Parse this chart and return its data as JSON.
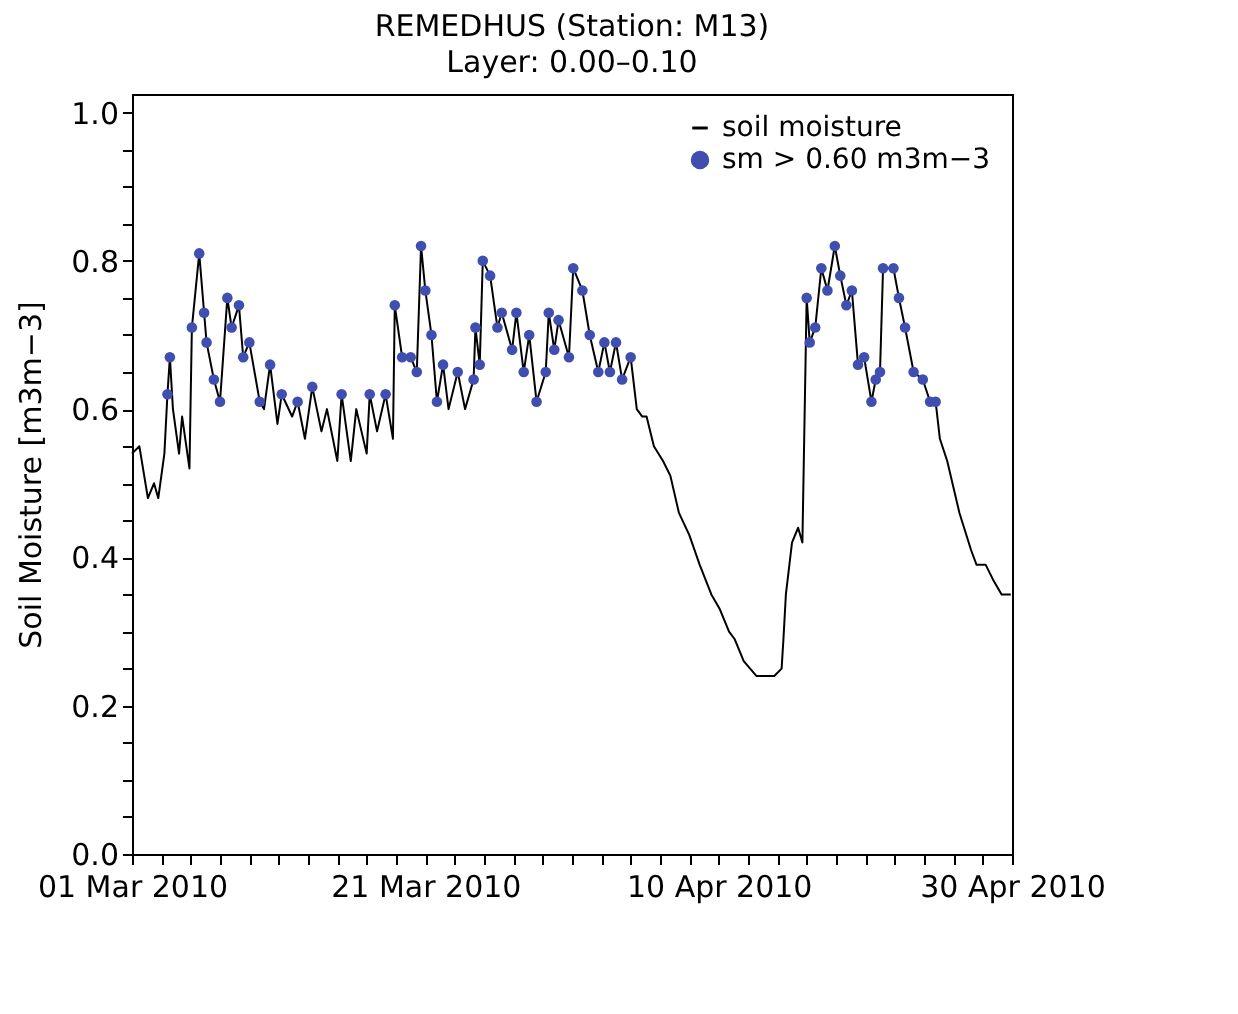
{
  "chart_data": {
    "type": "line",
    "title": "REMEDHUS  (Station: M13)",
    "subtitle": "Layer: 0.00–0.10",
    "ylabel": "Soil Moisture [m3m−3]",
    "x": [
      "2010-03-01T00:00",
      "2010-03-01T12:00",
      "2010-03-02T02:00",
      "2010-03-02T12:00",
      "2010-03-02T19:00",
      "2010-03-03T05:00",
      "2010-03-03T10:00",
      "2010-03-03T14:00",
      "2010-03-03T19:00",
      "2010-03-04T05:00",
      "2010-03-04T10:00",
      "2010-03-04T22:00",
      "2010-03-05T02:00",
      "2010-03-05T14:00",
      "2010-03-05T22:00",
      "2010-03-06T02:00",
      "2010-03-06T14:00",
      "2010-03-07T00:00",
      "2010-03-07T12:00",
      "2010-03-07T19:00",
      "2010-03-08T07:00",
      "2010-03-08T14:00",
      "2010-03-09T00:00",
      "2010-03-09T17:00",
      "2010-03-10T00:00",
      "2010-03-10T10:00",
      "2010-03-10T22:00",
      "2010-03-11T05:00",
      "2010-03-11T22:00",
      "2010-03-12T07:00",
      "2010-03-12T19:00",
      "2010-03-13T07:00",
      "2010-03-13T22:00",
      "2010-03-14T07:00",
      "2010-03-15T00:00",
      "2010-03-15T07:00",
      "2010-03-15T22:00",
      "2010-03-16T07:00",
      "2010-03-17T00:00",
      "2010-03-17T05:00",
      "2010-03-17T17:00",
      "2010-03-18T07:00",
      "2010-03-18T19:00",
      "2010-03-18T22:00",
      "2010-03-19T10:00",
      "2010-03-20T00:00",
      "2010-03-20T10:00",
      "2010-03-20T17:00",
      "2010-03-21T00:00",
      "2010-03-21T10:00",
      "2010-03-21T19:00",
      "2010-03-22T05:00",
      "2010-03-22T14:00",
      "2010-03-23T05:00",
      "2010-03-23T17:00",
      "2010-03-24T07:00",
      "2010-03-24T10:00",
      "2010-03-24T17:00",
      "2010-03-24T22:00",
      "2010-03-25T10:00",
      "2010-03-25T22:00",
      "2010-03-26T05:00",
      "2010-03-26T22:00",
      "2010-03-27T05:00",
      "2010-03-27T17:00",
      "2010-03-28T02:00",
      "2010-03-28T14:00",
      "2010-03-29T05:00",
      "2010-03-29T10:00",
      "2010-03-29T19:00",
      "2010-03-30T02:00",
      "2010-03-30T19:00",
      "2010-03-31T02:00",
      "2010-03-31T17:00",
      "2010-04-01T05:00",
      "2010-04-01T19:00",
      "2010-04-02T05:00",
      "2010-04-02T14:00",
      "2010-04-03T00:00",
      "2010-04-03T10:00",
      "2010-04-04T00:00",
      "2010-04-04T10:00",
      "2010-04-04T19:00",
      "2010-04-05T02:00",
      "2010-04-05T14:00",
      "2010-04-06T05:00",
      "2010-04-06T17:00",
      "2010-04-07T07:00",
      "2010-04-08T00:00",
      "2010-04-08T17:00",
      "2010-04-09T12:00",
      "2010-04-10T02:00",
      "2010-04-10T17:00",
      "2010-04-11T02:00",
      "2010-04-11T17:00",
      "2010-04-12T14:00",
      "2010-04-13T19:00",
      "2010-04-14T07:00",
      "2010-04-14T10:00",
      "2010-04-14T14:00",
      "2010-04-15T00:00",
      "2010-04-15T10:00",
      "2010-04-15T17:00",
      "2010-04-16T00:00",
      "2010-04-16T05:00",
      "2010-04-16T14:00",
      "2010-04-17T00:00",
      "2010-04-17T10:00",
      "2010-04-17T22:00",
      "2010-04-18T07:00",
      "2010-04-18T17:00",
      "2010-04-19T02:00",
      "2010-04-19T12:00",
      "2010-04-19T22:00",
      "2010-04-20T10:00",
      "2010-04-20T17:00",
      "2010-04-21T00:00",
      "2010-04-21T05:00",
      "2010-04-21T22:00",
      "2010-04-22T07:00",
      "2010-04-22T17:00",
      "2010-04-23T07:00",
      "2010-04-23T22:00",
      "2010-04-24T10:00",
      "2010-04-24T19:00",
      "2010-04-25T02:00",
      "2010-04-25T14:00",
      "2010-04-26T10:00",
      "2010-04-27T05:00",
      "2010-04-27T14:00",
      "2010-04-28T05:00",
      "2010-04-28T17:00",
      "2010-04-29T07:00",
      "2010-04-29T22:00"
    ],
    "series": [
      {
        "name": "soil moisture",
        "type": "line",
        "color": "#000000",
        "values": [
          0.54,
          0.55,
          0.48,
          0.5,
          0.48,
          0.54,
          0.62,
          0.67,
          0.6,
          0.54,
          0.59,
          0.52,
          0.71,
          0.81,
          0.73,
          0.69,
          0.64,
          0.61,
          0.75,
          0.71,
          0.74,
          0.67,
          0.69,
          0.61,
          0.6,
          0.66,
          0.58,
          0.62,
          0.59,
          0.61,
          0.56,
          0.63,
          0.57,
          0.6,
          0.53,
          0.62,
          0.53,
          0.6,
          0.54,
          0.62,
          0.57,
          0.62,
          0.56,
          0.74,
          0.67,
          0.67,
          0.65,
          0.82,
          0.76,
          0.7,
          0.61,
          0.66,
          0.6,
          0.65,
          0.6,
          0.64,
          0.71,
          0.66,
          0.8,
          0.78,
          0.71,
          0.73,
          0.68,
          0.73,
          0.65,
          0.7,
          0.61,
          0.65,
          0.73,
          0.68,
          0.72,
          0.67,
          0.79,
          0.76,
          0.7,
          0.65,
          0.69,
          0.65,
          0.69,
          0.64,
          0.67,
          0.6,
          0.59,
          0.59,
          0.55,
          0.53,
          0.51,
          0.46,
          0.43,
          0.39,
          0.35,
          0.33,
          0.3,
          0.29,
          0.26,
          0.24,
          0.24,
          0.25,
          0.29,
          0.35,
          0.42,
          0.44,
          0.42,
          0.75,
          0.69,
          0.71,
          0.79,
          0.76,
          0.82,
          0.78,
          0.74,
          0.76,
          0.66,
          0.67,
          0.61,
          0.64,
          0.65,
          0.79,
          0.79,
          0.75,
          0.71,
          0.65,
          0.64,
          0.61,
          0.61,
          0.56,
          0.53,
          0.46,
          0.41,
          0.39,
          0.39,
          0.37,
          0.35,
          0.35
        ]
      },
      {
        "name": "sm > 0.60 m3m−3",
        "type": "scatter",
        "marker": "circle",
        "color": "#3f4fb0",
        "values": [
          null,
          null,
          null,
          null,
          null,
          null,
          0.62,
          0.67,
          null,
          null,
          null,
          null,
          0.71,
          0.81,
          0.73,
          0.69,
          0.64,
          0.61,
          0.75,
          0.71,
          0.74,
          0.67,
          0.69,
          0.61,
          null,
          0.66,
          null,
          0.62,
          null,
          0.61,
          null,
          0.63,
          null,
          null,
          null,
          0.62,
          null,
          null,
          null,
          0.62,
          null,
          0.62,
          null,
          0.74,
          0.67,
          0.67,
          0.65,
          0.82,
          0.76,
          0.7,
          0.61,
          0.66,
          null,
          0.65,
          null,
          0.64,
          0.71,
          0.66,
          0.8,
          0.78,
          0.71,
          0.73,
          0.68,
          0.73,
          0.65,
          0.7,
          0.61,
          0.65,
          0.73,
          0.68,
          0.72,
          0.67,
          0.79,
          0.76,
          0.7,
          0.65,
          0.69,
          0.65,
          0.69,
          0.64,
          0.67,
          null,
          null,
          null,
          null,
          null,
          null,
          null,
          null,
          null,
          null,
          null,
          null,
          null,
          null,
          null,
          null,
          null,
          null,
          null,
          null,
          null,
          null,
          0.75,
          0.69,
          0.71,
          0.79,
          0.76,
          0.82,
          0.78,
          0.74,
          0.76,
          0.66,
          0.67,
          0.61,
          0.64,
          0.65,
          0.79,
          0.79,
          0.75,
          0.71,
          0.65,
          0.64,
          0.61,
          0.61,
          null,
          null,
          null,
          null,
          null,
          null,
          null,
          null,
          null
        ]
      }
    ],
    "xlim": [
      "2010-03-01",
      "2010-04-30"
    ],
    "xticks": [
      {
        "value": "2010-03-01",
        "label": "01 Mar 2010"
      },
      {
        "value": "2010-03-03",
        "label": null
      },
      {
        "value": "2010-03-05",
        "label": null
      },
      {
        "value": "2010-03-07",
        "label": null
      },
      {
        "value": "2010-03-09",
        "label": null
      },
      {
        "value": "2010-03-11",
        "label": null
      },
      {
        "value": "2010-03-13",
        "label": null
      },
      {
        "value": "2010-03-15",
        "label": null
      },
      {
        "value": "2010-03-17",
        "label": null
      },
      {
        "value": "2010-03-19",
        "label": null
      },
      {
        "value": "2010-03-21",
        "label": "21 Mar 2010"
      },
      {
        "value": "2010-03-23",
        "label": null
      },
      {
        "value": "2010-03-25",
        "label": null
      },
      {
        "value": "2010-03-27",
        "label": null
      },
      {
        "value": "2010-03-29",
        "label": null
      },
      {
        "value": "2010-03-31",
        "label": null
      },
      {
        "value": "2010-04-02",
        "label": null
      },
      {
        "value": "2010-04-04",
        "label": null
      },
      {
        "value": "2010-04-06",
        "label": null
      },
      {
        "value": "2010-04-08",
        "label": null
      },
      {
        "value": "2010-04-10",
        "label": "10 Apr 2010"
      },
      {
        "value": "2010-04-12",
        "label": null
      },
      {
        "value": "2010-04-14",
        "label": null
      },
      {
        "value": "2010-04-16",
        "label": null
      },
      {
        "value": "2010-04-18",
        "label": null
      },
      {
        "value": "2010-04-20",
        "label": null
      },
      {
        "value": "2010-04-22",
        "label": null
      },
      {
        "value": "2010-04-24",
        "label": null
      },
      {
        "value": "2010-04-26",
        "label": null
      },
      {
        "value": "2010-04-28",
        "label": null
      },
      {
        "value": "2010-04-30",
        "label": "30 Apr 2010"
      }
    ],
    "ylim": [
      0,
      1.025
    ],
    "yticks": [
      {
        "value": 0,
        "label": "0.0"
      },
      {
        "value": 0.05,
        "label": null
      },
      {
        "value": 0.1,
        "label": null
      },
      {
        "value": 0.15,
        "label": null
      },
      {
        "value": 0.2,
        "label": "0.2"
      },
      {
        "value": 0.25,
        "label": null
      },
      {
        "value": 0.3,
        "label": null
      },
      {
        "value": 0.35,
        "label": null
      },
      {
        "value": 0.4,
        "label": "0.4"
      },
      {
        "value": 0.45,
        "label": null
      },
      {
        "value": 0.5,
        "label": null
      },
      {
        "value": 0.55,
        "label": null
      },
      {
        "value": 0.6,
        "label": "0.6"
      },
      {
        "value": 0.65,
        "label": null
      },
      {
        "value": 0.7,
        "label": null
      },
      {
        "value": 0.75,
        "label": null
      },
      {
        "value": 0.8,
        "label": "0.8"
      },
      {
        "value": 0.85,
        "label": null
      },
      {
        "value": 0.9,
        "label": null
      },
      {
        "value": 0.95,
        "label": null
      },
      {
        "value": 1,
        "label": "1.0"
      }
    ],
    "legend": "top right"
  }
}
